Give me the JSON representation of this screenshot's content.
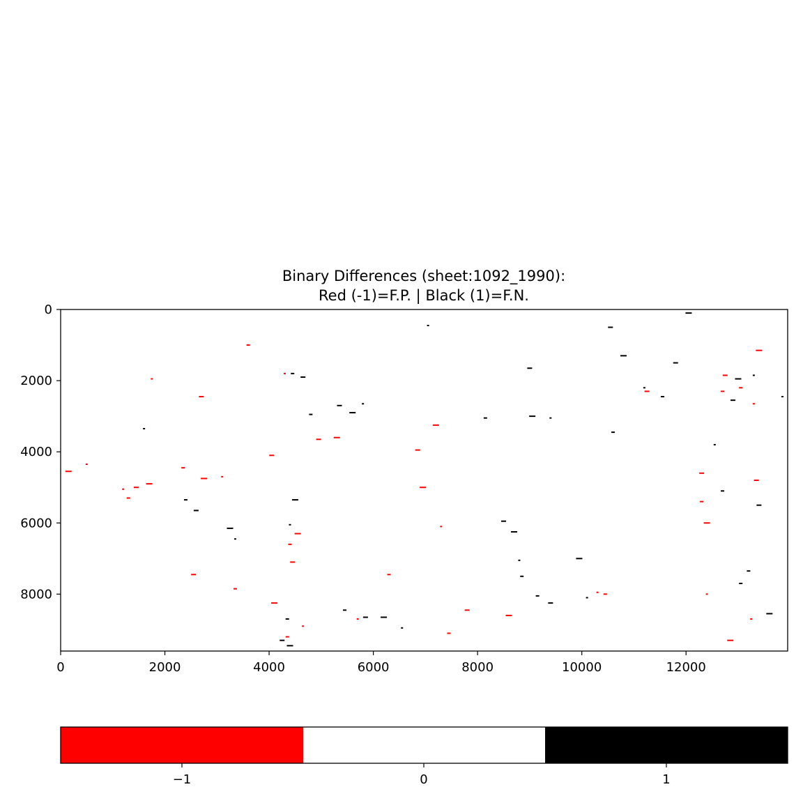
{
  "chart_data": {
    "type": "heatmap",
    "title": "Binary Differences (sheet:1092_1990):",
    "subtitle": "Red (-1)=F.P. | Black (1)=F.N.",
    "xlim": [
      0,
      13950
    ],
    "ylim": [
      9600,
      0
    ],
    "x_ticks": [
      0,
      2000,
      4000,
      6000,
      8000,
      10000,
      12000
    ],
    "y_ticks": [
      0,
      2000,
      4000,
      6000,
      8000
    ],
    "colormap": [
      {
        "value": -1,
        "color": "#ff0000"
      },
      {
        "value": 0,
        "color": "#ffffff"
      },
      {
        "value": 1,
        "color": "#000000"
      }
    ],
    "colorbar_ticks": [
      "−1",
      "0",
      "1"
    ],
    "false_positive_regions": [
      [
        1200,
        5050
      ],
      [
        1300,
        5300
      ],
      [
        1450,
        5000
      ],
      [
        1700,
        4900
      ],
      [
        1750,
        1950
      ],
      [
        2350,
        4450
      ],
      [
        2700,
        2450
      ],
      [
        2750,
        4750
      ],
      [
        3100,
        4700
      ],
      [
        3350,
        7850
      ],
      [
        4050,
        4100
      ],
      [
        4100,
        8250
      ],
      [
        4300,
        1800
      ],
      [
        4400,
        6600
      ],
      [
        4450,
        7100
      ],
      [
        4550,
        6300
      ],
      [
        4650,
        8900
      ],
      [
        4350,
        9200
      ],
      [
        4950,
        3650
      ],
      [
        5300,
        3600
      ],
      [
        5700,
        8700
      ],
      [
        6300,
        7450
      ],
      [
        6850,
        3950
      ],
      [
        7200,
        3250
      ],
      [
        7300,
        6100
      ],
      [
        7450,
        9100
      ],
      [
        7800,
        8450
      ],
      [
        8600,
        8600
      ],
      [
        10300,
        7950
      ],
      [
        10450,
        8000
      ],
      [
        12300,
        4600
      ],
      [
        12400,
        6000
      ],
      [
        12400,
        8000
      ],
      [
        12700,
        2300
      ],
      [
        12750,
        1850
      ],
      [
        12850,
        9300
      ],
      [
        13250,
        8700
      ],
      [
        13050,
        2200
      ],
      [
        13350,
        4800
      ],
      [
        13400,
        1150
      ],
      [
        13300,
        2650
      ],
      [
        12300,
        5400
      ],
      [
        11250,
        2300
      ],
      [
        150,
        4550
      ],
      [
        500,
        4350
      ],
      [
        3600,
        1000
      ],
      [
        2550,
        7450
      ],
      [
        6950,
        5000
      ]
    ],
    "false_negative_regions": [
      [
        1600,
        3350
      ],
      [
        2400,
        5350
      ],
      [
        2600,
        5650
      ],
      [
        3250,
        6150
      ],
      [
        3350,
        6450
      ],
      [
        4450,
        1800
      ],
      [
        4650,
        1900
      ],
      [
        4500,
        5350
      ],
      [
        4400,
        6050
      ],
      [
        4800,
        2950
      ],
      [
        5350,
        2700
      ],
      [
        5600,
        2900
      ],
      [
        5800,
        2650
      ],
      [
        5450,
        8450
      ],
      [
        5850,
        8650
      ],
      [
        6200,
        8650
      ],
      [
        6550,
        8950
      ],
      [
        4350,
        8700
      ],
      [
        4250,
        9300
      ],
      [
        4400,
        9450
      ],
      [
        7050,
        450
      ],
      [
        8150,
        3050
      ],
      [
        8500,
        5950
      ],
      [
        8700,
        6250
      ],
      [
        8800,
        7050
      ],
      [
        8850,
        7500
      ],
      [
        9000,
        1650
      ],
      [
        9050,
        3000
      ],
      [
        9400,
        3050
      ],
      [
        9150,
        8050
      ],
      [
        9400,
        8250
      ],
      [
        9950,
        7000
      ],
      [
        10100,
        8100
      ],
      [
        10600,
        3450
      ],
      [
        10550,
        500
      ],
      [
        10800,
        1300
      ],
      [
        11200,
        2200
      ],
      [
        11550,
        2450
      ],
      [
        11800,
        1500
      ],
      [
        12050,
        100
      ],
      [
        12550,
        3800
      ],
      [
        12700,
        5100
      ],
      [
        12900,
        2550
      ],
      [
        13000,
        1950
      ],
      [
        13300,
        1850
      ],
      [
        13200,
        7350
      ],
      [
        13400,
        5500
      ],
      [
        13600,
        8550
      ],
      [
        13850,
        2450
      ],
      [
        13050,
        7700
      ]
    ]
  }
}
